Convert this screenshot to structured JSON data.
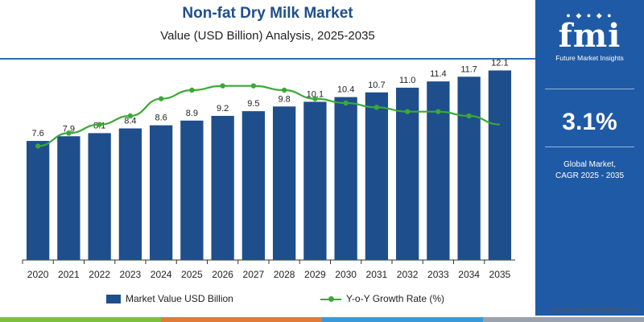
{
  "header": {
    "title": "Non-fat Dry Milk Market",
    "subtitle": "Value (USD Billion) Analysis, 2025-2035"
  },
  "chart_data": {
    "type": "bar",
    "categories": [
      "2020",
      "2021",
      "2022",
      "2023",
      "2024",
      "2025",
      "2026",
      "2027",
      "2028",
      "2029",
      "2030",
      "2031",
      "2032",
      "2033",
      "2034",
      "2035"
    ],
    "series": [
      {
        "name": "Market Value USD Billion",
        "type": "bar",
        "color": "#1f4e8c",
        "values": [
          7.6,
          7.9,
          8.1,
          8.4,
          8.6,
          8.9,
          9.2,
          9.5,
          9.8,
          10.1,
          10.4,
          10.7,
          11.0,
          11.4,
          11.7,
          12.1
        ],
        "labels": [
          "7.6",
          "7.9",
          "8.1",
          "8.4",
          "8.6",
          "8.9",
          "9.2",
          "9.5",
          "9.8",
          "10.1",
          "10.4",
          "10.7",
          "11.0",
          "11.4",
          "11.7",
          "12.1"
        ]
      },
      {
        "name": "Y-o-Y Growth Rate (%)",
        "type": "line",
        "color": "#3aa935",
        "values": [
          2.6,
          2.9,
          3.1,
          3.3,
          3.7,
          3.9,
          4.0,
          4.0,
          3.9,
          3.7,
          3.6,
          3.5,
          3.4,
          3.4,
          3.3,
          3.1
        ]
      }
    ],
    "bar_ylim": [
      0,
      13
    ],
    "line_ylim": [
      1.5,
      4.5
    ],
    "grid": false,
    "legend": "bottom"
  },
  "sidebar": {
    "logo_text": "fmi",
    "logo_subtitle": "Future Market Insights",
    "cagr_value": "3.1%",
    "cagr_label_line1": "Global Market,",
    "cagr_label_line2": "CAGR 2025 - 2035"
  },
  "footer": {
    "source": "www.futuremarketinsights.com",
    "strip_colors": [
      "#7fbf3f",
      "#e07b39",
      "#3a9ad9",
      "#9aa3ad"
    ]
  }
}
